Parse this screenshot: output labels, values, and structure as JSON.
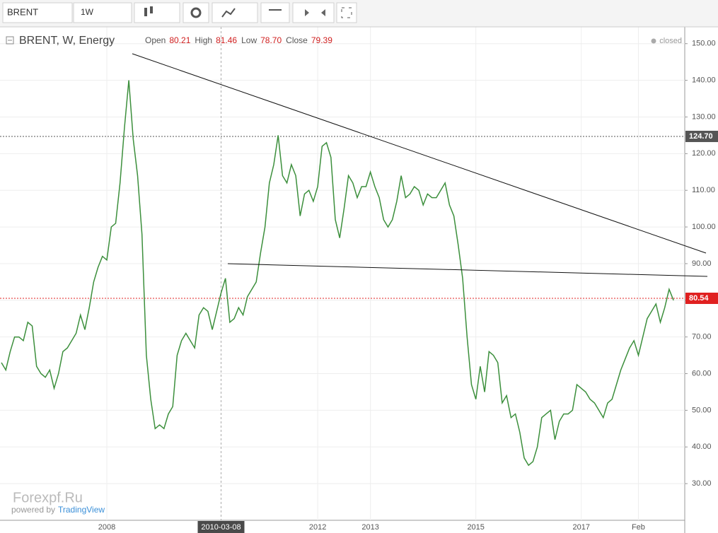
{
  "toolbar": {
    "symbol": "BRENT",
    "interval": "1W"
  },
  "header": {
    "title": "BRENT, W, Energy",
    "status": "closed",
    "ohlc": [
      {
        "label": "Open",
        "value": "80.21"
      },
      {
        "label": "High",
        "value": "81.46"
      },
      {
        "label": "Low",
        "value": "78.70"
      },
      {
        "label": "Close",
        "value": "79.39"
      }
    ]
  },
  "watermark": {
    "brand": "Forexpf.Ru",
    "powered": "powered by",
    "provider": "TradingView"
  },
  "chart_data": {
    "type": "line",
    "categories": [
      null,
      null,
      null,
      null,
      null,
      null,
      null,
      null,
      null,
      null,
      null,
      null,
      null,
      null,
      null,
      null,
      null,
      null,
      null,
      null,
      null,
      null,
      null,
      null,
      "2008",
      null,
      null,
      null,
      null,
      null,
      null,
      null,
      null,
      null,
      null,
      null,
      null,
      null,
      null,
      null,
      null,
      null,
      null,
      null,
      null,
      null,
      null,
      null,
      null,
      null,
      "2010-03-08",
      null,
      null,
      null,
      null,
      null,
      null,
      null,
      null,
      null,
      null,
      null,
      null,
      null,
      null,
      null,
      null,
      null,
      null,
      null,
      null,
      null,
      "2012",
      null,
      null,
      null,
      null,
      null,
      null,
      null,
      null,
      null,
      null,
      null,
      "2013",
      null,
      null,
      null,
      null,
      null,
      null,
      null,
      null,
      null,
      null,
      null,
      null,
      null,
      null,
      null,
      null,
      null,
      null,
      null,
      null,
      null,
      null,
      null,
      "2015",
      null,
      null,
      null,
      null,
      null,
      null,
      null,
      null,
      null,
      null,
      null,
      null,
      null,
      null,
      null,
      null,
      null,
      null,
      null,
      null,
      null,
      null,
      null,
      "2017",
      null,
      null,
      null,
      null,
      null,
      null,
      null,
      null,
      null,
      null,
      null,
      null,
      "Feb",
      null,
      null,
      null,
      null,
      null,
      null,
      null,
      null
    ],
    "series": [
      {
        "name": "BRENT",
        "color": "#3c8f3c",
        "values": [
          63,
          61,
          66,
          70,
          70,
          69,
          74,
          73,
          62,
          60,
          59,
          61,
          56,
          60,
          66,
          67,
          69,
          71,
          76,
          72,
          78,
          85,
          89,
          92,
          91,
          100,
          101,
          112,
          127,
          140,
          124,
          114,
          98,
          65,
          53,
          45,
          46,
          45,
          49,
          51,
          65,
          69,
          71,
          69,
          67,
          76,
          78,
          77,
          72,
          77,
          82,
          86,
          74,
          75,
          78,
          76,
          81,
          83,
          85,
          93,
          100,
          112,
          117,
          125,
          114,
          112,
          117,
          114,
          103,
          109,
          110,
          107,
          111,
          122,
          123,
          119,
          102,
          97,
          105,
          114,
          112,
          108,
          111,
          111,
          115,
          111,
          108,
          102,
          100,
          102,
          107,
          114,
          108,
          109,
          111,
          110,
          106,
          109,
          108,
          108,
          110,
          112,
          106,
          103,
          95,
          86,
          70,
          57,
          53,
          62,
          55,
          66,
          65,
          63,
          52,
          54,
          48,
          49,
          44,
          37,
          35,
          36,
          40,
          48,
          49,
          50,
          42,
          47,
          49,
          49,
          50,
          57,
          56,
          55,
          53,
          52,
          50,
          48,
          52,
          53,
          57,
          61,
          64,
          67,
          69,
          65,
          70,
          75,
          77,
          79,
          74,
          78,
          83,
          80
        ]
      }
    ],
    "ylim": [
      20,
      154
    ],
    "yticks": [
      {
        "value": 30,
        "label": "30.00"
      },
      {
        "value": 40,
        "label": "40.00"
      },
      {
        "value": 50,
        "label": "50.00"
      },
      {
        "value": 60,
        "label": "60.00"
      },
      {
        "value": 70,
        "label": "70.00"
      },
      {
        "value": 80,
        "label": "80.00"
      },
      {
        "value": 90,
        "label": "90.00"
      },
      {
        "value": 100,
        "label": "100.00"
      },
      {
        "value": 110,
        "label": "110.00"
      },
      {
        "value": 120,
        "label": "120.00"
      },
      {
        "value": 130,
        "label": "130.00"
      },
      {
        "value": 140,
        "label": "140.00"
      },
      {
        "value": 150,
        "label": "150.00"
      }
    ],
    "price_lines": [
      {
        "value": 124.7,
        "label": "124.70",
        "color": "#555555"
      },
      {
        "value": 80.54,
        "label": "80.54",
        "color": "#e02020"
      }
    ],
    "grid": true
  }
}
